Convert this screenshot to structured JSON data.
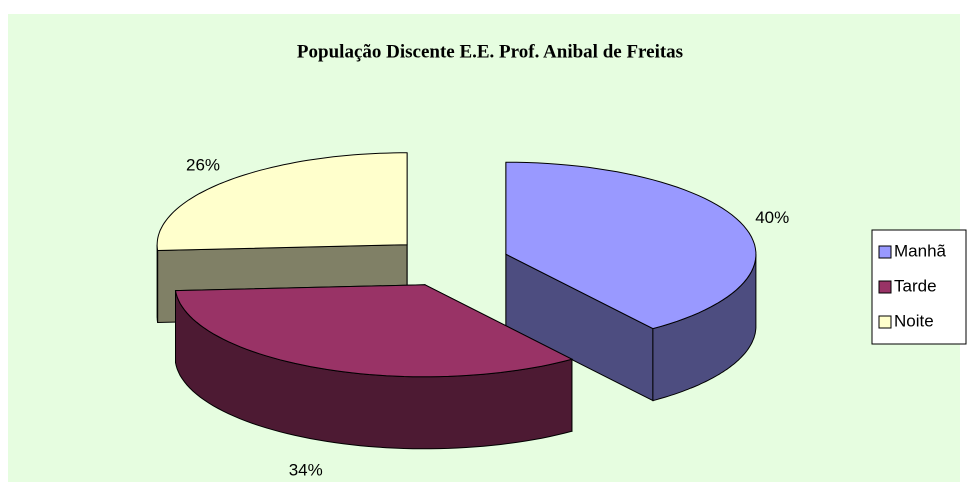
{
  "chart_data": {
    "type": "pie3d",
    "title": "População Discente E.E. Prof. Anibal de Freitas",
    "categories": [
      "Manhã",
      "Tarde",
      "Noite"
    ],
    "values": [
      40,
      34,
      26
    ],
    "value_labels": [
      "40%",
      "34%",
      "26%"
    ],
    "colors": [
      "#9999ff",
      "#993366",
      "#ffffcc"
    ],
    "legend": "right"
  }
}
